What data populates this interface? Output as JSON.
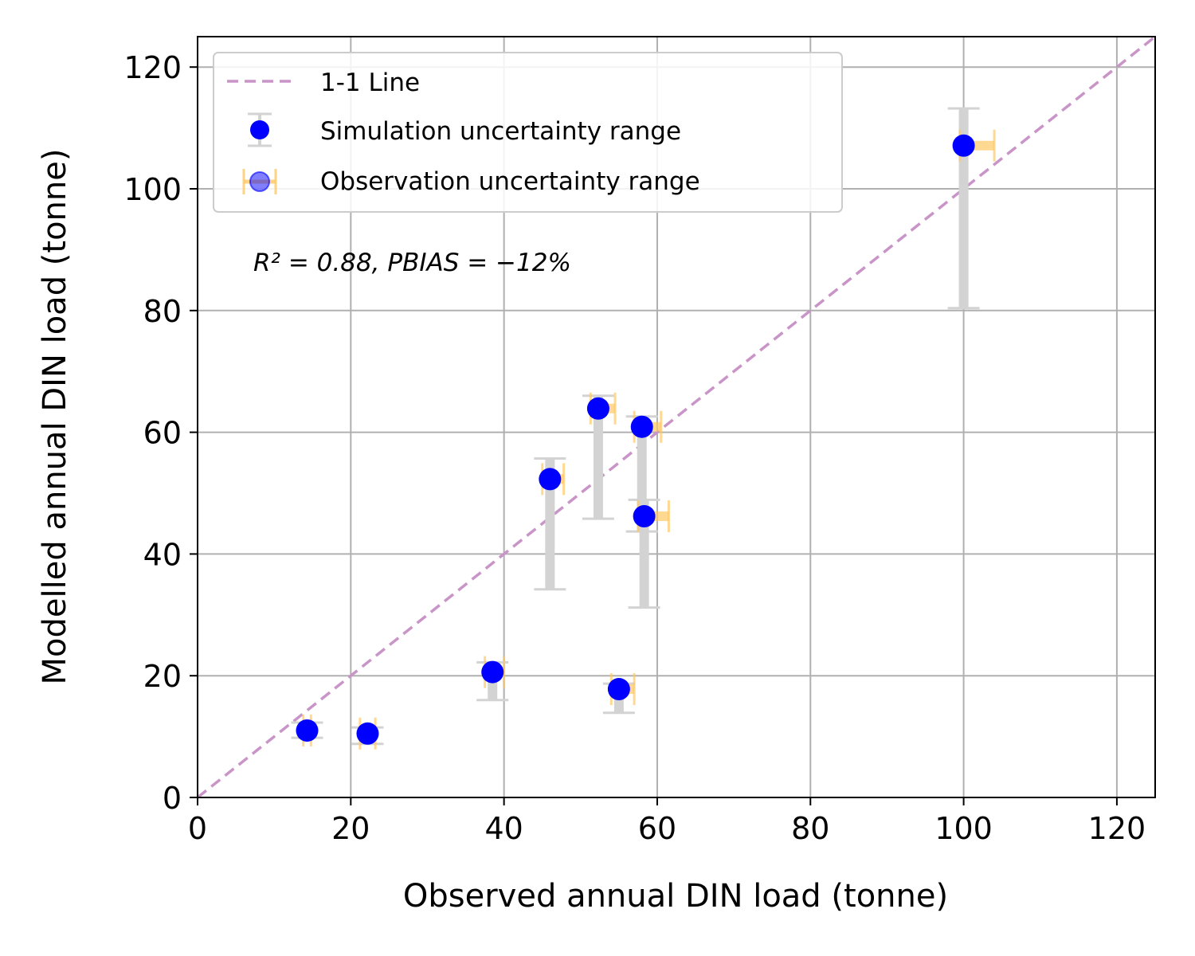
{
  "chart_data": {
    "type": "scatter",
    "xlabel": "Observed annual DIN load (tonne)",
    "ylabel": "Modelled annual DIN load (tonne)",
    "xlim": [
      0,
      125
    ],
    "ylim": [
      0,
      125
    ],
    "xticks": [
      0,
      20,
      40,
      60,
      80,
      100,
      120
    ],
    "yticks": [
      0,
      20,
      40,
      60,
      80,
      100,
      120
    ],
    "grid": true,
    "legend_position": "top-left",
    "annotation": "R² = 0.88, PBIAS = −12%",
    "reference_line": {
      "name": "1-1 Line",
      "color": "#c994c7",
      "style": "dashed"
    },
    "series": [
      {
        "name": "Simulation uncertainty range",
        "marker_color": "#0000ff",
        "errorbar_color": "#d3d3d3",
        "points": [
          {
            "x": 14.3,
            "y": 11.0,
            "ylow": 9.8,
            "yhigh": 12.3
          },
          {
            "x": 22.2,
            "y": 10.5,
            "ylow": 8.8,
            "yhigh": 11.5
          },
          {
            "x": 38.5,
            "y": 20.6,
            "ylow": 16.0,
            "yhigh": 22.2
          },
          {
            "x": 46.0,
            "y": 52.3,
            "ylow": 34.2,
            "yhigh": 55.7
          },
          {
            "x": 52.3,
            "y": 63.9,
            "ylow": 45.8,
            "yhigh": 66.0
          },
          {
            "x": 55.0,
            "y": 17.8,
            "ylow": 13.9,
            "yhigh": 18.7
          },
          {
            "x": 58.0,
            "y": 60.9,
            "ylow": 43.7,
            "yhigh": 62.6
          },
          {
            "x": 58.3,
            "y": 46.2,
            "ylow": 31.2,
            "yhigh": 48.9
          },
          {
            "x": 100.0,
            "y": 107.1,
            "ylow": 80.4,
            "yhigh": 113.2
          }
        ]
      },
      {
        "name": "Observation uncertainty range",
        "errorbar_color": "#ffc864",
        "points": [
          {
            "x": 14.3,
            "y": 11.0,
            "xlow": 13.8,
            "xhigh": 14.8
          },
          {
            "x": 22.2,
            "y": 10.5,
            "xlow": 21.2,
            "xhigh": 23.2
          },
          {
            "x": 38.5,
            "y": 20.6,
            "xlow": 37.5,
            "xhigh": 40.0
          },
          {
            "x": 46.0,
            "y": 52.3,
            "xlow": 45.0,
            "xhigh": 47.8
          },
          {
            "x": 52.3,
            "y": 63.9,
            "xlow": 51.3,
            "xhigh": 54.5
          },
          {
            "x": 55.0,
            "y": 17.8,
            "xlow": 54.0,
            "xhigh": 57.0
          },
          {
            "x": 58.0,
            "y": 60.9,
            "xlow": 57.0,
            "xhigh": 60.5
          },
          {
            "x": 58.3,
            "y": 46.2,
            "xlow": 57.5,
            "xhigh": 61.5
          },
          {
            "x": 100.0,
            "y": 107.1,
            "xlow": 99.5,
            "xhigh": 104.0
          }
        ]
      }
    ]
  },
  "legend": {
    "line_label": "1-1 Line",
    "sim_label": "Simulation uncertainty range",
    "obs_label": "Observation uncertainty range"
  }
}
